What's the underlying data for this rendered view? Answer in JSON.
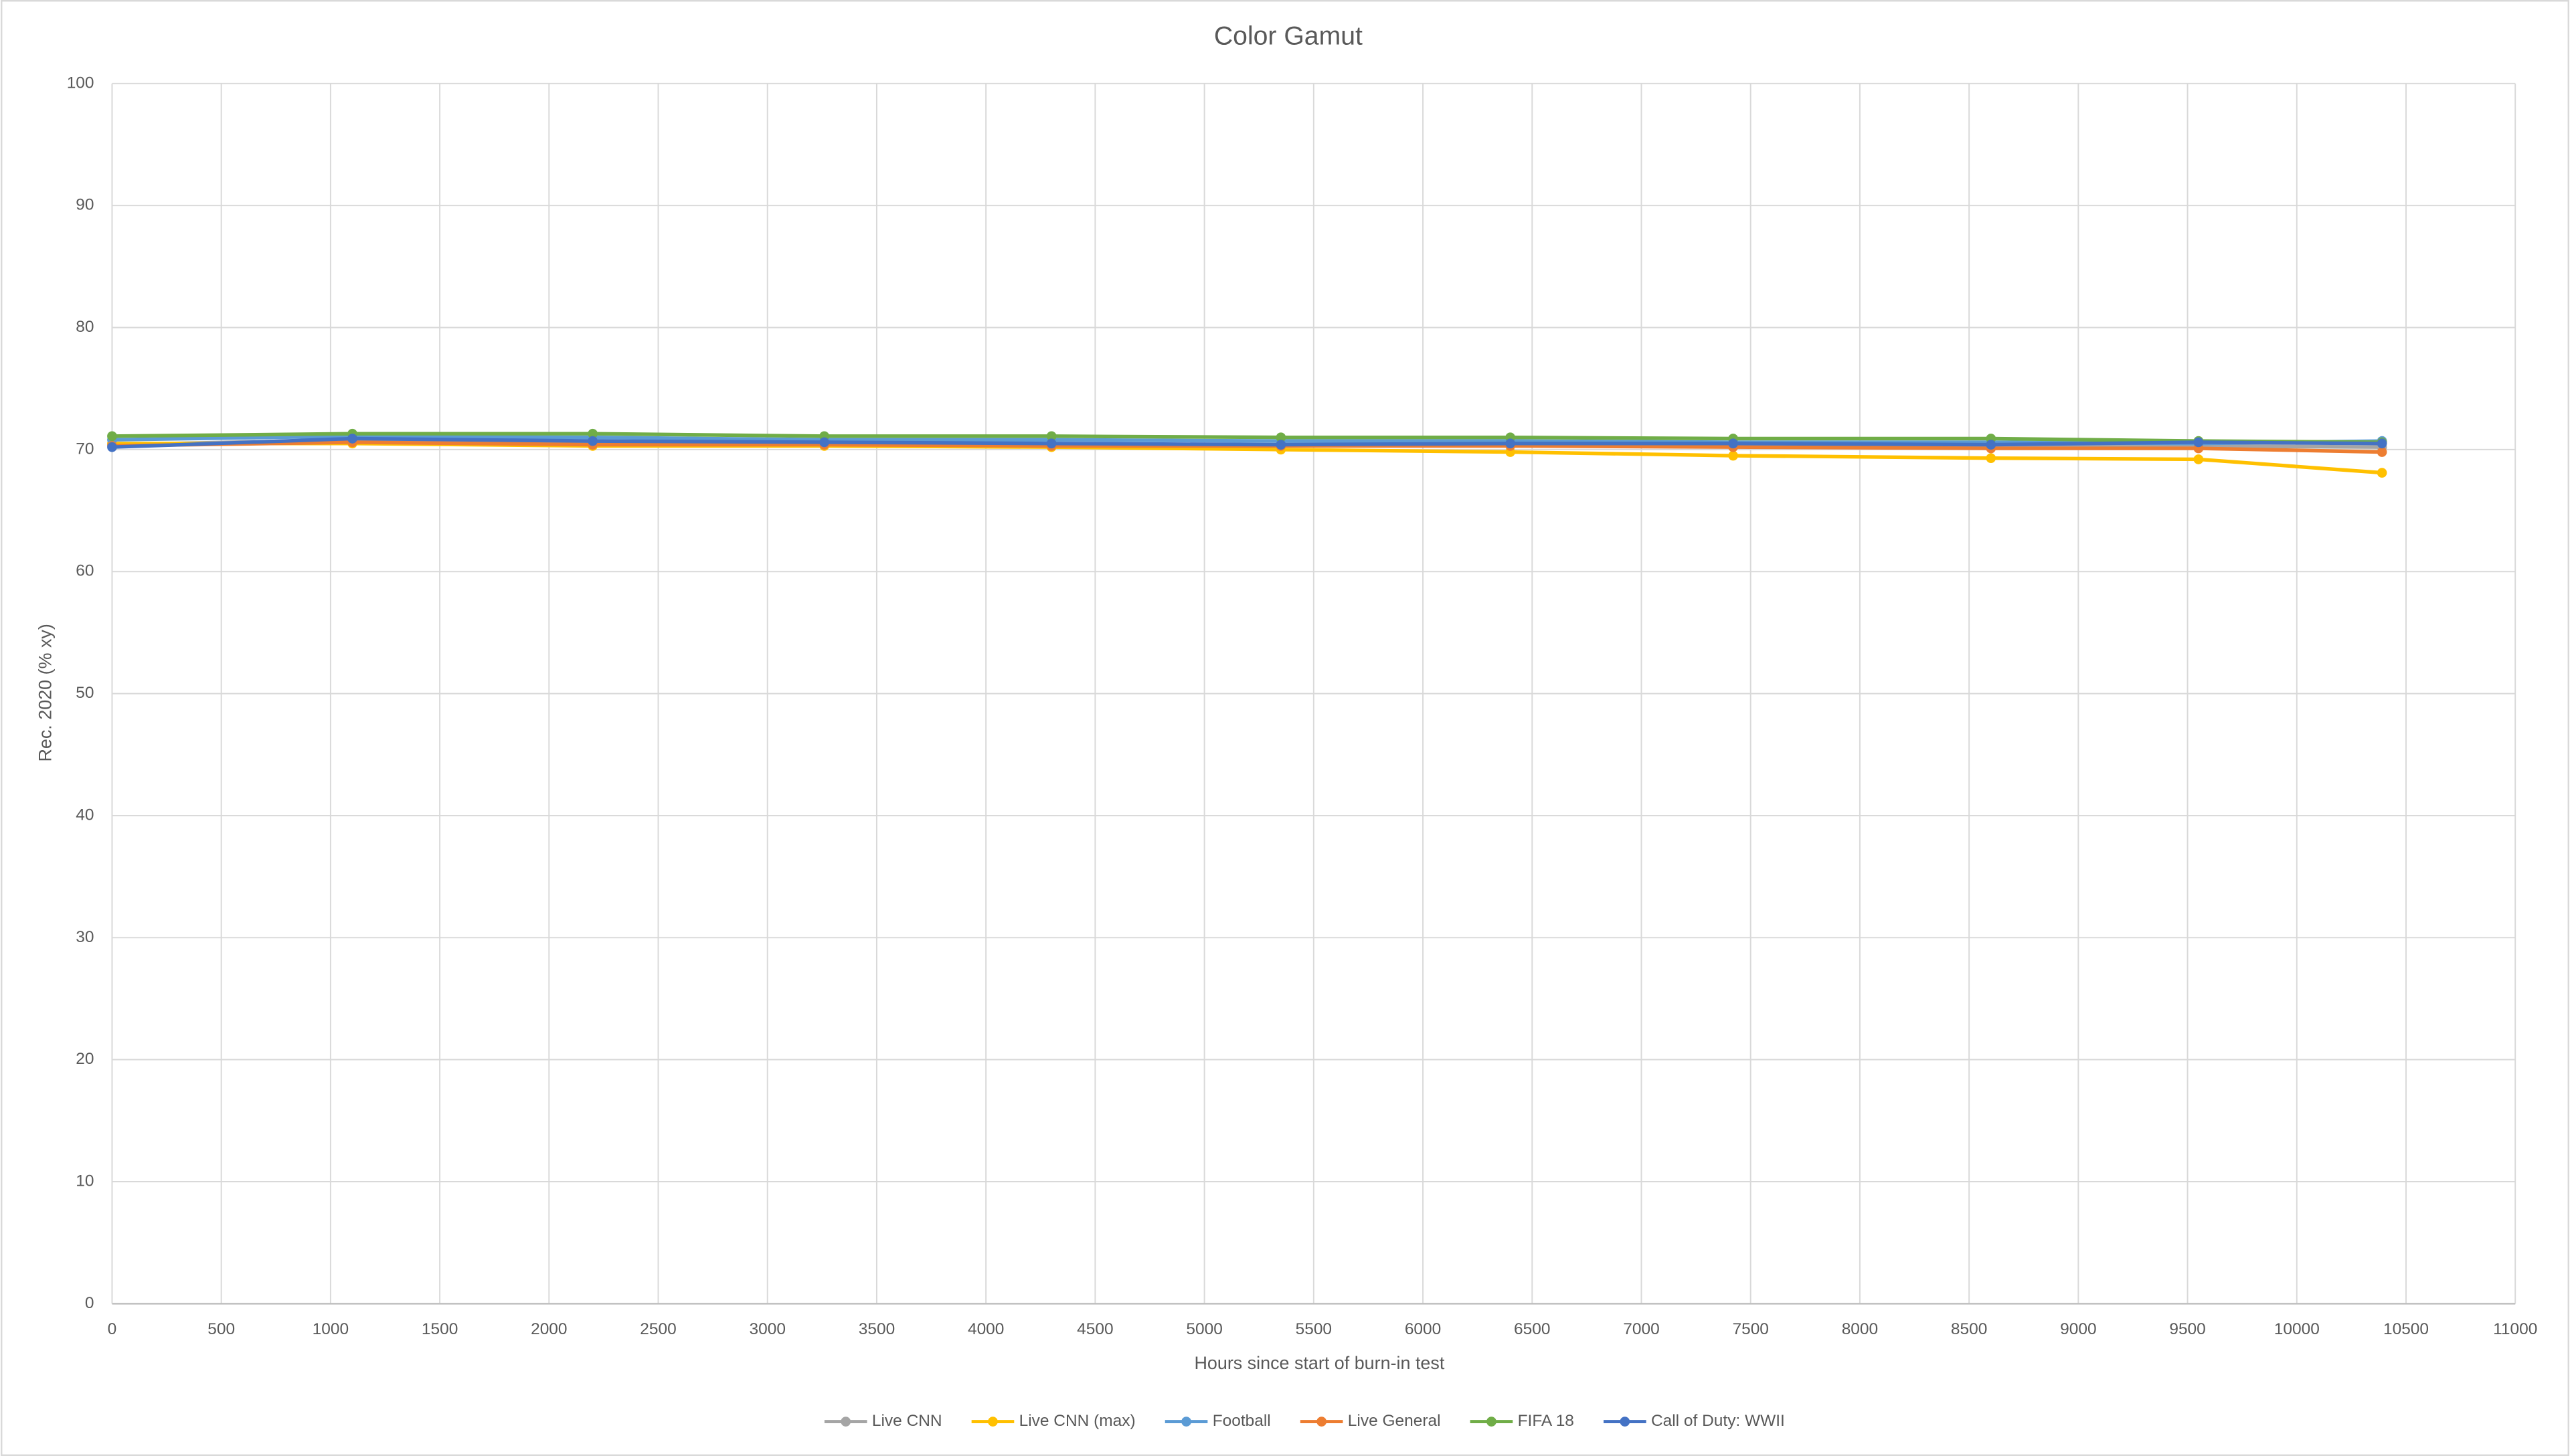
{
  "chart_data": {
    "type": "line",
    "title": "Color Gamut",
    "x_label": "Hours since start of burn-in test",
    "y_label": "Rec. 2020 (% xy)",
    "x": [
      0,
      1100,
      2200,
      3260,
      4300,
      5350,
      6400,
      7420,
      8600,
      9550,
      10390
    ],
    "series": [
      {
        "name": "Live CNN",
        "color": "#a5a5a5",
        "values": [
          70.4,
          70.8,
          70.6,
          70.5,
          70.4,
          70.4,
          70.4,
          70.3,
          70.3,
          70.3,
          70.2
        ]
      },
      {
        "name": "Live CNN (max)",
        "color": "#ffc000",
        "values": [
          70.5,
          70.5,
          70.3,
          70.3,
          70.2,
          70.0,
          69.8,
          69.5,
          69.3,
          69.2,
          68.1
        ]
      },
      {
        "name": "Football",
        "color": "#5b9bd5",
        "values": [
          70.8,
          71.1,
          71.0,
          70.8,
          70.8,
          70.7,
          70.7,
          70.6,
          70.6,
          70.5,
          70.7
        ]
      },
      {
        "name": "Live General",
        "color": "#ed7d31",
        "values": [
          70.3,
          70.6,
          70.4,
          70.4,
          70.3,
          70.3,
          70.3,
          70.2,
          70.1,
          70.1,
          69.8
        ]
      },
      {
        "name": "FIFA 18",
        "color": "#70ad47",
        "values": [
          71.1,
          71.3,
          71.3,
          71.1,
          71.1,
          71.0,
          71.0,
          70.9,
          70.9,
          70.7,
          70.6
        ]
      },
      {
        "name": "Call of Duty: WWII",
        "color": "#4472c4",
        "values": [
          70.2,
          70.9,
          70.7,
          70.6,
          70.5,
          70.4,
          70.5,
          70.5,
          70.4,
          70.6,
          70.5
        ]
      }
    ],
    "xlim": [
      0,
      11000
    ],
    "xticks": [
      0,
      500,
      1000,
      1500,
      2000,
      2500,
      3000,
      3500,
      4000,
      4500,
      5000,
      5500,
      6000,
      6500,
      7000,
      7500,
      8000,
      8500,
      9000,
      9500,
      10000,
      10500,
      11000
    ],
    "ylim": [
      0,
      100
    ],
    "yticks": [
      0,
      10,
      20,
      30,
      40,
      50,
      60,
      70,
      80,
      90,
      100
    ],
    "grid": true,
    "legend": "bottom"
  }
}
